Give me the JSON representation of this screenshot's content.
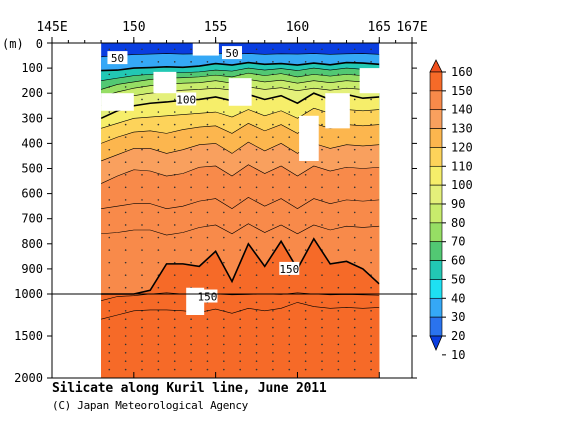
{
  "chart_data": {
    "type": "contour",
    "title": "Silicate along Kuril line, June 2011",
    "credit": "(C) Japan Meteorological Agency",
    "ylabel": "(m)",
    "x_ticks": [
      "145E",
      "150",
      "155",
      "160",
      "165",
      "167E"
    ],
    "x_tick_values": [
      145,
      150,
      155,
      160,
      165,
      167
    ],
    "xlim": [
      145,
      167
    ],
    "y_ticks_upper": [
      0,
      100,
      200,
      300,
      400,
      500,
      600,
      700,
      800,
      900,
      1000
    ],
    "y_ticks_lower": [
      1500,
      2000
    ],
    "y_axis_break": 1000,
    "ylim": [
      0,
      2000
    ],
    "data_extent_x": [
      148.0,
      165.0
    ],
    "contour_levels": [
      10,
      20,
      30,
      40,
      50,
      60,
      70,
      80,
      90,
      100,
      110,
      120,
      130,
      140,
      150,
      160
    ],
    "colorbar": {
      "labels": [
        "160",
        "150",
        "140",
        "130",
        "120",
        "110",
        "100",
        "90",
        "80",
        "70",
        "60",
        "50",
        "40",
        "30",
        "20",
        "10"
      ],
      "colors": [
        "#f0501e",
        "#f66a28",
        "#f88a4a",
        "#f9a05e",
        "#fcb64e",
        "#fdd35a",
        "#f6ee6a",
        "#e4f07a",
        "#c8ec6c",
        "#96de64",
        "#52c873",
        "#22c8b4",
        "#1ee0f2",
        "#35a8f6",
        "#2a73ee",
        "#0a3ee0"
      ]
    },
    "annotations": [
      "50",
      "50",
      "100",
      "150",
      "150"
    ],
    "contours": [
      {
        "level": 30,
        "x": [
          148,
          149,
          150,
          151,
          152,
          153,
          154,
          155,
          156,
          157,
          158,
          159,
          160,
          161,
          162,
          163,
          164,
          165
        ],
        "depth": [
          55,
          50,
          46,
          44,
          42,
          44,
          43,
          40,
          44,
          42,
          45,
          43,
          44,
          42,
          45,
          43,
          42,
          45
        ]
      },
      {
        "level": 50,
        "x": [
          148,
          149,
          150,
          151,
          152,
          153,
          154,
          155,
          156,
          157,
          158,
          159,
          160,
          161,
          162,
          163,
          164,
          165
        ],
        "depth": [
          110,
          108,
          100,
          98,
          95,
          97,
          92,
          82,
          88,
          78,
          85,
          82,
          88,
          80,
          87,
          78,
          80,
          85
        ]
      },
      {
        "level": 60,
        "x": [
          148,
          149,
          150,
          151,
          152,
          153,
          154,
          155,
          156,
          157,
          158,
          159,
          160,
          161,
          162,
          163,
          164,
          165
        ],
        "depth": [
          150,
          140,
          130,
          125,
          120,
          118,
          115,
          108,
          112,
          100,
          108,
          102,
          110,
          100,
          108,
          100,
          105,
          110
        ]
      },
      {
        "level": 70,
        "x": [
          148,
          149,
          150,
          151,
          152,
          153,
          154,
          155,
          156,
          157,
          158,
          159,
          160,
          161,
          162,
          163,
          164,
          165
        ],
        "depth": [
          185,
          165,
          155,
          145,
          140,
          138,
          135,
          128,
          135,
          120,
          130,
          122,
          135,
          125,
          132,
          125,
          130,
          135
        ]
      },
      {
        "level": 80,
        "x": [
          148,
          149,
          150,
          151,
          152,
          153,
          154,
          155,
          156,
          157,
          158,
          159,
          160,
          161,
          162,
          163,
          164,
          165
        ],
        "depth": [
          215,
          195,
          180,
          170,
          165,
          160,
          158,
          150,
          160,
          145,
          155,
          148,
          160,
          150,
          158,
          150,
          155,
          160
        ]
      },
      {
        "level": 90,
        "x": [
          148,
          149,
          150,
          151,
          152,
          153,
          154,
          155,
          156,
          157,
          158,
          159,
          160,
          161,
          162,
          163,
          164,
          165
        ],
        "depth": [
          250,
          225,
          210,
          200,
          195,
          188,
          185,
          180,
          188,
          175,
          185,
          178,
          190,
          180,
          188,
          180,
          185,
          190
        ]
      },
      {
        "level": 100,
        "x": [
          148,
          149,
          150,
          151,
          152,
          153,
          154,
          155,
          156,
          157,
          158,
          159,
          160,
          161,
          162,
          163,
          164,
          165
        ],
        "depth": [
          300,
          270,
          250,
          240,
          235,
          228,
          225,
          215,
          230,
          205,
          225,
          210,
          240,
          200,
          225,
          205,
          220,
          215
        ]
      },
      {
        "level": 110,
        "x": [
          148,
          149,
          150,
          151,
          152,
          153,
          154,
          155,
          156,
          157,
          158,
          159,
          160,
          161,
          162,
          163,
          164,
          165
        ],
        "depth": [
          340,
          320,
          300,
          295,
          290,
          285,
          280,
          275,
          295,
          265,
          290,
          270,
          300,
          260,
          280,
          265,
          270,
          265
        ]
      },
      {
        "level": 120,
        "x": [
          148,
          149,
          150,
          151,
          152,
          153,
          154,
          155,
          156,
          157,
          158,
          159,
          160,
          161,
          162,
          163,
          164,
          165
        ],
        "depth": [
          400,
          375,
          355,
          350,
          360,
          345,
          335,
          330,
          360,
          320,
          350,
          325,
          360,
          320,
          340,
          325,
          330,
          325
        ]
      },
      {
        "level": 130,
        "x": [
          148,
          149,
          150,
          151,
          152,
          153,
          154,
          155,
          156,
          157,
          158,
          159,
          160,
          161,
          162,
          163,
          164,
          165
        ],
        "depth": [
          470,
          445,
          420,
          420,
          440,
          425,
          405,
          400,
          440,
          395,
          430,
          400,
          440,
          400,
          420,
          405,
          410,
          405
        ]
      },
      {
        "level": 140,
        "x": [
          148,
          149,
          150,
          151,
          152,
          153,
          154,
          155,
          156,
          157,
          158,
          159,
          160,
          161,
          162,
          163,
          164,
          165
        ],
        "depth": [
          560,
          530,
          505,
          510,
          530,
          520,
          495,
          490,
          530,
          485,
          520,
          490,
          530,
          490,
          510,
          495,
          500,
          495
        ]
      },
      {
        "level": 145,
        "x": [
          148,
          149,
          150,
          151,
          152,
          153,
          154,
          155,
          156,
          157,
          158,
          159,
          160,
          161,
          162,
          163,
          164,
          165
        ],
        "depth": [
          660,
          650,
          640,
          640,
          660,
          650,
          630,
          620,
          660,
          615,
          650,
          620,
          660,
          620,
          640,
          625,
          630,
          625
        ]
      },
      {
        "level": 148,
        "x": [
          148,
          149,
          150,
          151,
          152,
          153,
          154,
          155,
          156,
          157,
          158,
          159,
          160,
          161,
          162,
          163,
          164,
          165
        ],
        "depth": [
          760,
          755,
          745,
          745,
          765,
          755,
          735,
          725,
          760,
          720,
          755,
          725,
          760,
          725,
          745,
          730,
          735,
          730
        ]
      },
      {
        "level": 150,
        "x": [
          148,
          149,
          150,
          151,
          152,
          153,
          154,
          155,
          156,
          157,
          158,
          159,
          160,
          161,
          162,
          163,
          164,
          165
        ],
        "depth": [
          1000,
          1000,
          1000,
          985,
          880,
          880,
          890,
          830,
          950,
          800,
          890,
          790,
          900,
          780,
          880,
          870,
          900,
          960
        ]
      },
      {
        "level": 152,
        "x": [
          148,
          149,
          150,
          151,
          152,
          153,
          154,
          155,
          156,
          157,
          158,
          159,
          160,
          161,
          162,
          163,
          164,
          165
        ],
        "depth": [
          1080,
          1030,
          1020,
          1000,
          995,
          1000,
          1005,
          1000,
          1010,
          1005,
          1000,
          1005,
          995,
          1000,
          1010,
          1005,
          1010,
          1015
        ]
      },
      {
        "level": 155,
        "x": [
          148,
          149,
          150,
          151,
          152,
          153,
          154,
          155,
          156,
          157,
          158,
          159,
          160,
          161,
          162,
          163,
          164,
          165
        ],
        "depth": [
          1300,
          1250,
          1200,
          1190,
          1190,
          1200,
          1220,
          1180,
          1230,
          1170,
          1200,
          1170,
          1100,
          1150,
          1170,
          1160,
          1170,
          1160
        ]
      }
    ],
    "missing_data": [
      {
        "x": [
          148.0,
          150.0
        ],
        "depth": [
          200,
          270
        ]
      },
      {
        "x": [
          151.2,
          152.6
        ],
        "depth": [
          115,
          200
        ]
      },
      {
        "x": [
          153.6,
          155.2
        ],
        "depth": [
          0,
          50
        ]
      },
      {
        "x": [
          155.8,
          157.2
        ],
        "depth": [
          140,
          250
        ]
      },
      {
        "x": [
          160.1,
          161.3
        ],
        "depth": [
          290,
          470
        ]
      },
      {
        "x": [
          161.7,
          163.2
        ],
        "depth": [
          200,
          340
        ]
      },
      {
        "x": [
          163.8,
          165.2
        ],
        "depth": [
          100,
          200
        ]
      },
      {
        "x": [
          153.2,
          154.3
        ],
        "depth": [
          975,
          1250
        ]
      }
    ],
    "grid": false,
    "legend_placement": "right"
  }
}
